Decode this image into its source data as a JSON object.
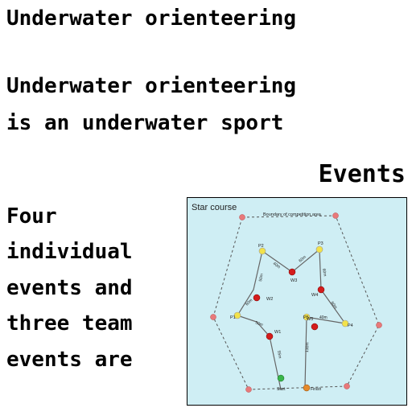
{
  "article": {
    "title": "Underwater orienteering",
    "intro_line1": "Underwater orienteering",
    "intro_line2": "is an underwater sport",
    "section_heading": "Events",
    "paragraph_lines": [
      "Four",
      "individual",
      "events and",
      "three team",
      "events are"
    ]
  },
  "figure": {
    "title": "Star course",
    "boundary_label": "Boundary of competition area",
    "waypoints": [
      "P1",
      "P2",
      "P3",
      "P4",
      "P5",
      "W1",
      "W2",
      "W3",
      "W4",
      "W5",
      "Start",
      "Finish"
    ],
    "leg_labels": [
      "60m",
      "50m",
      "40m",
      "60m",
      "60m",
      "60m",
      "40m",
      "50m",
      "55m",
      "60m",
      "130m"
    ],
    "colors": {
      "background": "#cfeef4",
      "control_point": "#f2e24a",
      "waypoint": "#d41c1c",
      "start": "#39b54a",
      "finish": "#e58a2b",
      "boundary_marker": "#e8797a"
    }
  }
}
